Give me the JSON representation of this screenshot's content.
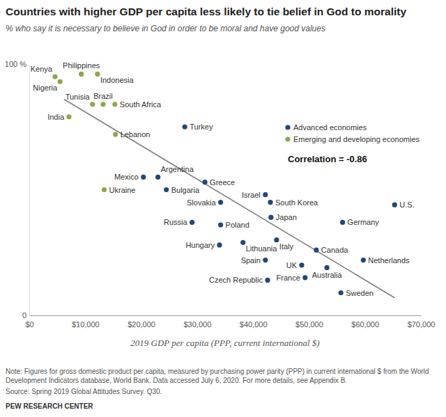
{
  "chart_data": {
    "type": "scatter",
    "title": "Countries with higher GDP per capita less likely to tie belief in God to morality",
    "subtitle": "% who say it is necessary to believe in God in order to be moral and have good values",
    "x_label": "2019 GDP per capita (PPP, current international $)",
    "xlim": [
      0,
      70000
    ],
    "xticks": [
      {
        "value": 0,
        "label": "$0"
      },
      {
        "value": 10000,
        "label": "$10,000"
      },
      {
        "value": 20000,
        "label": "$20,000"
      },
      {
        "value": 30000,
        "label": "$30,000"
      },
      {
        "value": 40000,
        "label": "$40,000"
      },
      {
        "value": 50000,
        "label": "$50,000"
      },
      {
        "value": 60000,
        "label": "$60,000"
      },
      {
        "value": 70000,
        "label": "$70,000"
      }
    ],
    "ylim": [
      0,
      100
    ],
    "yticks": [
      0,
      {
        "value": 100,
        "label": "100 %"
      }
    ],
    "grid": false,
    "legend": "right",
    "series": [
      {
        "name": "Advanced economies",
        "color": "#234777",
        "marker": "circle",
        "labels": [
          "Turkey",
          "Mexico",
          "Argentina",
          "Greece",
          "Bulgaria",
          "Slovakia",
          "Israel",
          "South Korea",
          "U.S.",
          "Russia",
          "Poland",
          "Japan",
          "Germany",
          "Hungary",
          "Lithuania",
          "Italy",
          "Canada",
          "Spain",
          "UK",
          "Australia",
          "Netherlands",
          "Czech Republic",
          "France",
          "Sweden"
        ],
        "x": [
          27800,
          20400,
          23000,
          31400,
          24500,
          34200,
          42200,
          43100,
          65300,
          29100,
          34200,
          43200,
          56000,
          34000,
          38200,
          44200,
          51300,
          42200,
          48700,
          53200,
          59700,
          42600,
          49300,
          55700
        ],
        "values": [
          75,
          55,
          55,
          53,
          50,
          45,
          48,
          45,
          44,
          37,
          36,
          39,
          37,
          28,
          29,
          30,
          26,
          22,
          20,
          19,
          22,
          14,
          15,
          9
        ]
      },
      {
        "name": "Emerging and developing economies",
        "color": "#8fa64e",
        "marker": "circle",
        "labels": [
          "Kenya",
          "Nigeria",
          "Philippines",
          "Indonesia",
          "Tunisia",
          "Brazil",
          "South Africa",
          "India",
          "Lebanon",
          "Ukraine"
        ],
        "x": [
          4600,
          5500,
          9300,
          12200,
          11300,
          13200,
          15300,
          7100,
          15400,
          13400
        ],
        "values": [
          95,
          93,
          96,
          96,
          84,
          84,
          84,
          79,
          72,
          50
        ]
      }
    ],
    "trend_line": {
      "x": [
        6200,
        65300
      ],
      "values": [
        86,
        7
      ],
      "color": "#808080"
    },
    "annotation": "Correlation = -0.86",
    "note": [
      "Note: Figures for gross domestic product per capita, measured by purchasing power parity (PPP) in current international $ from the World",
      "Development Indicators database, World Bank. Data accessed July 6, 2020. For more details, see Appendix B."
    ],
    "source": "Source: Spring 2019 Global Attitudes Survey. Q30.",
    "credit": "PEW RESEARCH CENTER"
  }
}
